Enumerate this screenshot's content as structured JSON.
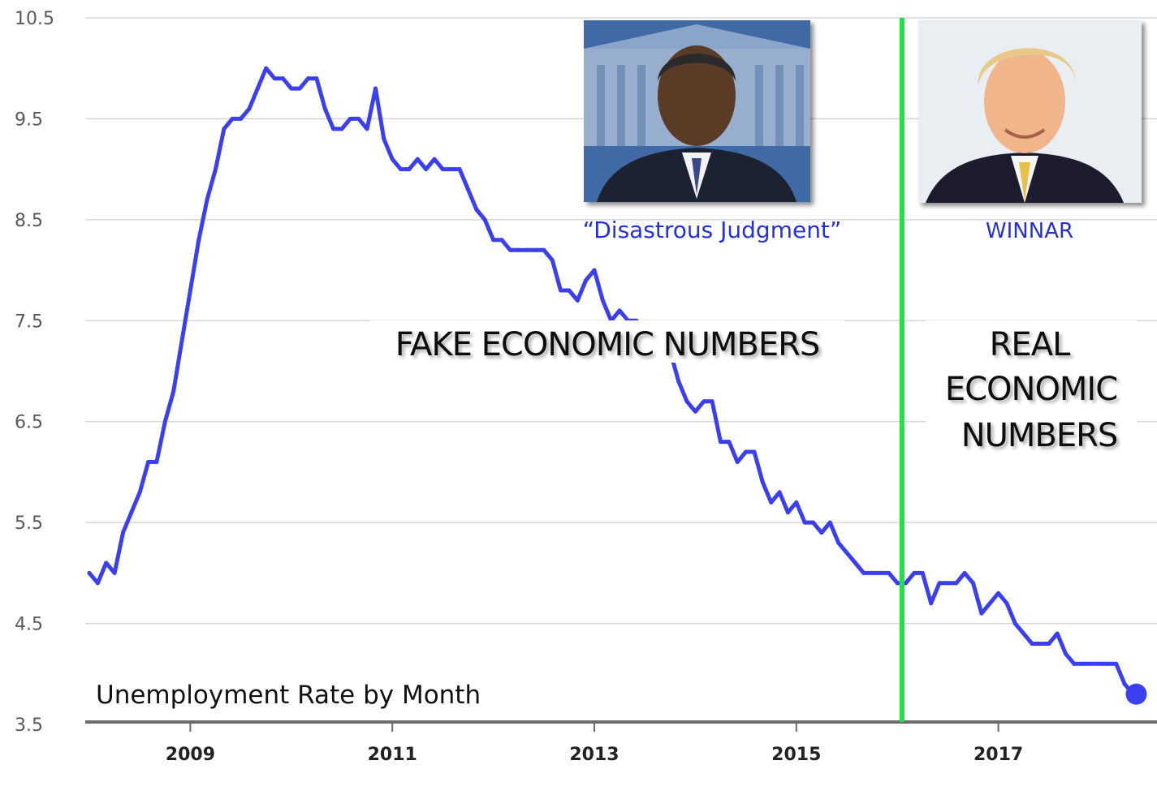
{
  "chart_data": {
    "type": "line",
    "title": "Unemployment Rate by Month",
    "ylim": [
      3.5,
      10.5
    ],
    "yticks": [
      "10.5",
      "9.5",
      "8.5",
      "7.5",
      "6.5",
      "5.5",
      "4.5",
      "3.5"
    ],
    "xticks": [
      "2009",
      "2011",
      "2013",
      "2015",
      "2017"
    ],
    "grid": true,
    "line_color": "#3a3ff0",
    "divider_color": "#22e04a",
    "divider_date": "2016-01",
    "series": [
      {
        "values": [
          {
            "x": "2008-01",
            "y": 5.0
          },
          {
            "x": "2008-02",
            "y": 4.9
          },
          {
            "x": "2008-03",
            "y": 5.1
          },
          {
            "x": "2008-04",
            "y": 5.0
          },
          {
            "x": "2008-05",
            "y": 5.4
          },
          {
            "x": "2008-06",
            "y": 5.6
          },
          {
            "x": "2008-07",
            "y": 5.8
          },
          {
            "x": "2008-08",
            "y": 6.1
          },
          {
            "x": "2008-09",
            "y": 6.1
          },
          {
            "x": "2008-10",
            "y": 6.5
          },
          {
            "x": "2008-11",
            "y": 6.8
          },
          {
            "x": "2008-12",
            "y": 7.3
          },
          {
            "x": "2009-01",
            "y": 7.8
          },
          {
            "x": "2009-02",
            "y": 8.3
          },
          {
            "x": "2009-03",
            "y": 8.7
          },
          {
            "x": "2009-04",
            "y": 9.0
          },
          {
            "x": "2009-05",
            "y": 9.4
          },
          {
            "x": "2009-06",
            "y": 9.5
          },
          {
            "x": "2009-07",
            "y": 9.5
          },
          {
            "x": "2009-08",
            "y": 9.6
          },
          {
            "x": "2009-09",
            "y": 9.8
          },
          {
            "x": "2009-10",
            "y": 10.0
          },
          {
            "x": "2009-11",
            "y": 9.9
          },
          {
            "x": "2009-12",
            "y": 9.9
          },
          {
            "x": "2010-01",
            "y": 9.8
          },
          {
            "x": "2010-02",
            "y": 9.8
          },
          {
            "x": "2010-03",
            "y": 9.9
          },
          {
            "x": "2010-04",
            "y": 9.9
          },
          {
            "x": "2010-05",
            "y": 9.6
          },
          {
            "x": "2010-06",
            "y": 9.4
          },
          {
            "x": "2010-07",
            "y": 9.4
          },
          {
            "x": "2010-08",
            "y": 9.5
          },
          {
            "x": "2010-09",
            "y": 9.5
          },
          {
            "x": "2010-10",
            "y": 9.4
          },
          {
            "x": "2010-11",
            "y": 9.8
          },
          {
            "x": "2010-12",
            "y": 9.3
          },
          {
            "x": "2011-01",
            "y": 9.1
          },
          {
            "x": "2011-02",
            "y": 9.0
          },
          {
            "x": "2011-03",
            "y": 9.0
          },
          {
            "x": "2011-04",
            "y": 9.1
          },
          {
            "x": "2011-05",
            "y": 9.0
          },
          {
            "x": "2011-06",
            "y": 9.1
          },
          {
            "x": "2011-07",
            "y": 9.0
          },
          {
            "x": "2011-08",
            "y": 9.0
          },
          {
            "x": "2011-09",
            "y": 9.0
          },
          {
            "x": "2011-10",
            "y": 8.8
          },
          {
            "x": "2011-11",
            "y": 8.6
          },
          {
            "x": "2011-12",
            "y": 8.5
          },
          {
            "x": "2012-01",
            "y": 8.3
          },
          {
            "x": "2012-02",
            "y": 8.3
          },
          {
            "x": "2012-03",
            "y": 8.2
          },
          {
            "x": "2012-04",
            "y": 8.2
          },
          {
            "x": "2012-05",
            "y": 8.2
          },
          {
            "x": "2012-06",
            "y": 8.2
          },
          {
            "x": "2012-07",
            "y": 8.2
          },
          {
            "x": "2012-08",
            "y": 8.1
          },
          {
            "x": "2012-09",
            "y": 7.8
          },
          {
            "x": "2012-10",
            "y": 7.8
          },
          {
            "x": "2012-11",
            "y": 7.7
          },
          {
            "x": "2012-12",
            "y": 7.9
          },
          {
            "x": "2013-01",
            "y": 8.0
          },
          {
            "x": "2013-02",
            "y": 7.7
          },
          {
            "x": "2013-03",
            "y": 7.5
          },
          {
            "x": "2013-04",
            "y": 7.6
          },
          {
            "x": "2013-05",
            "y": 7.5
          },
          {
            "x": "2013-06",
            "y": 7.5
          },
          {
            "x": "2013-07",
            "y": 7.3
          },
          {
            "x": "2013-08",
            "y": 7.2
          },
          {
            "x": "2013-09",
            "y": 7.2
          },
          {
            "x": "2013-10",
            "y": 7.2
          },
          {
            "x": "2013-11",
            "y": 6.9
          },
          {
            "x": "2013-12",
            "y": 6.7
          },
          {
            "x": "2014-01",
            "y": 6.6
          },
          {
            "x": "2014-02",
            "y": 6.7
          },
          {
            "x": "2014-03",
            "y": 6.7
          },
          {
            "x": "2014-04",
            "y": 6.3
          },
          {
            "x": "2014-05",
            "y": 6.3
          },
          {
            "x": "2014-06",
            "y": 6.1
          },
          {
            "x": "2014-07",
            "y": 6.2
          },
          {
            "x": "2014-08",
            "y": 6.2
          },
          {
            "x": "2014-09",
            "y": 5.9
          },
          {
            "x": "2014-10",
            "y": 5.7
          },
          {
            "x": "2014-11",
            "y": 5.8
          },
          {
            "x": "2014-12",
            "y": 5.6
          },
          {
            "x": "2015-01",
            "y": 5.7
          },
          {
            "x": "2015-02",
            "y": 5.5
          },
          {
            "x": "2015-03",
            "y": 5.5
          },
          {
            "x": "2015-04",
            "y": 5.4
          },
          {
            "x": "2015-05",
            "y": 5.5
          },
          {
            "x": "2015-06",
            "y": 5.3
          },
          {
            "x": "2015-07",
            "y": 5.2
          },
          {
            "x": "2015-08",
            "y": 5.1
          },
          {
            "x": "2015-09",
            "y": 5.0
          },
          {
            "x": "2015-10",
            "y": 5.0
          },
          {
            "x": "2015-11",
            "y": 5.0
          },
          {
            "x": "2015-12",
            "y": 5.0
          },
          {
            "x": "2016-01",
            "y": 4.9
          },
          {
            "x": "2016-02",
            "y": 4.9
          },
          {
            "x": "2016-03",
            "y": 5.0
          },
          {
            "x": "2016-04",
            "y": 5.0
          },
          {
            "x": "2016-05",
            "y": 4.7
          },
          {
            "x": "2016-06",
            "y": 4.9
          },
          {
            "x": "2016-07",
            "y": 4.9
          },
          {
            "x": "2016-08",
            "y": 4.9
          },
          {
            "x": "2016-09",
            "y": 5.0
          },
          {
            "x": "2016-10",
            "y": 4.9
          },
          {
            "x": "2016-11",
            "y": 4.6
          },
          {
            "x": "2016-12",
            "y": 4.7
          },
          {
            "x": "2017-01",
            "y": 4.8
          },
          {
            "x": "2017-02",
            "y": 4.7
          },
          {
            "x": "2017-03",
            "y": 4.5
          },
          {
            "x": "2017-04",
            "y": 4.4
          },
          {
            "x": "2017-05",
            "y": 4.3
          },
          {
            "x": "2017-06",
            "y": 4.3
          },
          {
            "x": "2017-07",
            "y": 4.3
          },
          {
            "x": "2017-08",
            "y": 4.4
          },
          {
            "x": "2017-09",
            "y": 4.2
          },
          {
            "x": "2017-10",
            "y": 4.1
          },
          {
            "x": "2017-11",
            "y": 4.1
          },
          {
            "x": "2017-12",
            "y": 4.1
          },
          {
            "x": "2018-01",
            "y": 4.1
          },
          {
            "x": "2018-02",
            "y": 4.1
          },
          {
            "x": "2018-03",
            "y": 4.1
          },
          {
            "x": "2018-04",
            "y": 3.9
          },
          {
            "x": "2018-05",
            "y": 3.8
          }
        ]
      }
    ],
    "annotations": {
      "left_caption": "“Disastrous Judgment”",
      "right_caption": "WINNAR",
      "fake_label": "FAKE ECONOMIC NUMBERS",
      "real_label_lines": [
        "REAL",
        "ECONOMIC",
        "NUMBERS"
      ]
    }
  },
  "photos": {
    "left": {
      "icon": "portrait-photo-left",
      "bg": "#3f6aa6",
      "suit": "#1d2430",
      "skin": "#5a3a26"
    },
    "right": {
      "icon": "portrait-photo-right",
      "bg": "#e9eef2",
      "suit": "#1a1f2e",
      "skin": "#f0b58a",
      "hair": "#e8c98a"
    }
  }
}
